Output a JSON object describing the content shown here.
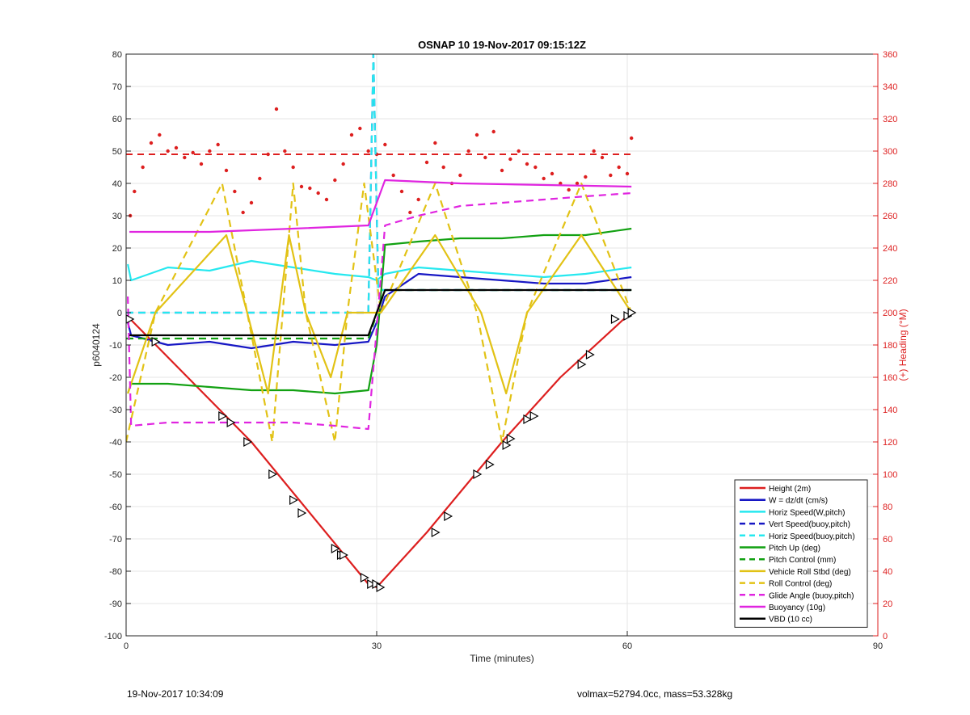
{
  "chart_data": {
    "type": "line",
    "title": "OSNAP 10 19-Nov-2017 09:15:12Z",
    "xlabel": "Time (minutes)",
    "ylabel_left": "p6040124",
    "ylabel_right": "(+) Heading (°M)",
    "xlim": [
      0,
      90
    ],
    "ylim_left": [
      -100,
      80
    ],
    "ylim_right": [
      0,
      360
    ],
    "x_ticks": [
      0,
      30,
      60,
      90
    ],
    "y_ticks_left": [
      -100,
      -90,
      -80,
      -70,
      -60,
      -50,
      -40,
      -30,
      -20,
      -10,
      0,
      10,
      20,
      30,
      40,
      50,
      60,
      70,
      80
    ],
    "y_ticks_right": [
      0,
      20,
      40,
      60,
      80,
      100,
      120,
      140,
      160,
      180,
      200,
      220,
      240,
      260,
      280,
      300,
      320,
      340,
      360
    ],
    "grid": true,
    "legend_position": "bottom-right",
    "series": [
      {
        "name": "Height (2m)",
        "color": "#dd1f1f",
        "style": "solid",
        "x": [
          0,
          0.5,
          15,
          29,
          30,
          36,
          45,
          52,
          60,
          60.5
        ],
        "y": [
          -1,
          -2,
          -40,
          -84,
          -85,
          -68,
          -40,
          -20,
          -1,
          0
        ]
      },
      {
        "name": "W = dz/dt (cm/s)",
        "color": "#1717c4",
        "style": "solid",
        "x": [
          0.2,
          0.6,
          5,
          10,
          15,
          20,
          25,
          29,
          30,
          31,
          35,
          40,
          45,
          50,
          55,
          60.5
        ],
        "y": [
          -3,
          -7,
          -10,
          -9,
          -11,
          -9,
          -10,
          -9,
          -3,
          5,
          12,
          11,
          10,
          9,
          9,
          11
        ]
      },
      {
        "name": "Horiz Speed(W,pitch)",
        "color": "#26e8ef",
        "style": "solid",
        "x": [
          0.2,
          0.6,
          5,
          10,
          15,
          20,
          25,
          29,
          30,
          31,
          35,
          40,
          45,
          50,
          55,
          60.5
        ],
        "y": [
          15,
          10,
          14,
          13,
          16,
          14,
          12,
          11,
          10,
          12,
          14,
          13,
          12,
          11,
          12,
          14
        ]
      },
      {
        "name": "Vert Speed(buoy,pitch)",
        "color": "#1717c4",
        "style": "dashed",
        "x": [
          0,
          29,
          29.6,
          30.2,
          60.5
        ],
        "y": [
          0,
          0,
          80,
          7,
          7
        ]
      },
      {
        "name": "Horiz Speed(buoy,pitch)",
        "color": "#26e8ef",
        "style": "dashed",
        "x": [
          0,
          29,
          29.6,
          30.2,
          60.5
        ],
        "y": [
          0,
          0,
          80,
          7,
          7
        ]
      },
      {
        "name": "Pitch Up (deg)",
        "color": "#12a112",
        "style": "solid",
        "x": [
          0.2,
          0.6,
          5,
          10,
          15,
          20,
          25,
          29,
          30,
          31,
          35,
          40,
          45,
          50,
          55,
          60.5
        ],
        "y": [
          -25,
          -22,
          -22,
          -23,
          -24,
          -24,
          -25,
          -24,
          -10,
          21,
          22,
          23,
          23,
          24,
          24,
          26
        ]
      },
      {
        "name": "Pitch Control (mm)",
        "color": "#12a112",
        "style": "dashed",
        "x": [
          0,
          29,
          31,
          60.5
        ],
        "y": [
          -8,
          -8,
          7,
          7
        ]
      },
      {
        "name": "Vehicle Roll Stbd (deg)",
        "color": "#e2c215",
        "style": "solid",
        "x": [
          0.2,
          3.5,
          12,
          14.5,
          17,
          19.5,
          21.5,
          24.5,
          26.5,
          29.2,
          30.5,
          37,
          42.5,
          45.5,
          48,
          54.5,
          60.5
        ],
        "y": [
          -25,
          0,
          24,
          0,
          -25,
          24,
          0,
          -20,
          0,
          0,
          0,
          24,
          0,
          -25,
          0,
          24,
          0
        ]
      },
      {
        "name": "Roll Control (deg)",
        "color": "#e2c215",
        "style": "dashed",
        "x": [
          0,
          3.5,
          11.5,
          14.5,
          17.5,
          20,
          21.5,
          25,
          26.5,
          28.5,
          30.5,
          37,
          42,
          45,
          48,
          54.5,
          60.5
        ],
        "y": [
          -40,
          0,
          40,
          0,
          -40,
          40,
          0,
          -40,
          0,
          40,
          0,
          40,
          0,
          -40,
          0,
          40,
          0
        ]
      },
      {
        "name": "Glide Angle (buoy,pitch)",
        "color": "#e025e0",
        "style": "dashed",
        "x": [
          0.2,
          0.6,
          5,
          10,
          15,
          20,
          25,
          29,
          30,
          31,
          35,
          40,
          45,
          50,
          55,
          60.5
        ],
        "y": [
          5,
          -35,
          -34,
          -34,
          -34,
          -34,
          -35,
          -36,
          -5,
          27,
          30,
          33,
          34,
          35,
          36,
          37
        ]
      },
      {
        "name": "Buoyancy (10g)",
        "color": "#e025e0",
        "style": "solid",
        "x": [
          0.4,
          10,
          20,
          29,
          31,
          40,
          60.5
        ],
        "y": [
          25,
          25,
          26,
          27,
          41,
          40,
          39
        ]
      },
      {
        "name": "VBD (10 cc)",
        "color": "#000000",
        "style": "solid",
        "x": [
          0.4,
          29,
          31,
          60.5
        ],
        "y": [
          -7,
          -7,
          7,
          7
        ]
      }
    ],
    "heading": {
      "color": "#dd1f1f",
      "axis": "right",
      "mean_line": 298,
      "points": {
        "x": [
          0.5,
          1,
          2,
          3,
          4,
          5,
          6,
          7,
          8,
          9,
          10,
          11,
          12,
          13,
          14,
          15,
          16,
          17,
          18,
          19,
          20,
          21,
          22,
          23,
          24,
          25,
          26,
          27,
          28,
          29,
          30,
          31,
          32,
          33,
          34,
          35,
          36,
          37,
          38,
          39,
          40,
          41,
          42,
          43,
          44,
          45,
          46,
          47,
          48,
          49,
          50,
          51,
          52,
          53,
          54,
          55,
          56,
          57,
          58,
          59,
          60,
          60.5
        ],
        "y": [
          260,
          275,
          290,
          305,
          310,
          300,
          302,
          296,
          299,
          292,
          300,
          304,
          288,
          275,
          262,
          268,
          283,
          298,
          326,
          300,
          290,
          278,
          277,
          274,
          270,
          282,
          292,
          310,
          314,
          300,
          298,
          304,
          285,
          275,
          262,
          270,
          293,
          305,
          290,
          280,
          285,
          300,
          310,
          296,
          312,
          288,
          295,
          300,
          292,
          290,
          283,
          286,
          280,
          276,
          280,
          284,
          300,
          296,
          285,
          290,
          286,
          308
        ]
      }
    },
    "height_markers": {
      "x": [
        0.4,
        3.5,
        11.5,
        12.5,
        14.5,
        17.5,
        20,
        21,
        25,
        25.7,
        26,
        28.5,
        29.3,
        29.9,
        30.4,
        37,
        38.5,
        42,
        43.5,
        45.5,
        46,
        48,
        48.8,
        54.5,
        55.5,
        58.5,
        60,
        60.5
      ],
      "y": [
        -2,
        -9,
        -32,
        -34,
        -40,
        -50,
        -58,
        -62,
        -73,
        -75,
        -75,
        -82,
        -84,
        -84,
        -85,
        -68,
        -63,
        -50,
        -47,
        -41,
        -39,
        -33,
        -32,
        -16,
        -13,
        -2,
        -1,
        0
      ]
    }
  },
  "footer": {
    "left": "19-Nov-2017 10:34:09",
    "right": "volmax=52794.0cc, mass=53.328kg"
  }
}
